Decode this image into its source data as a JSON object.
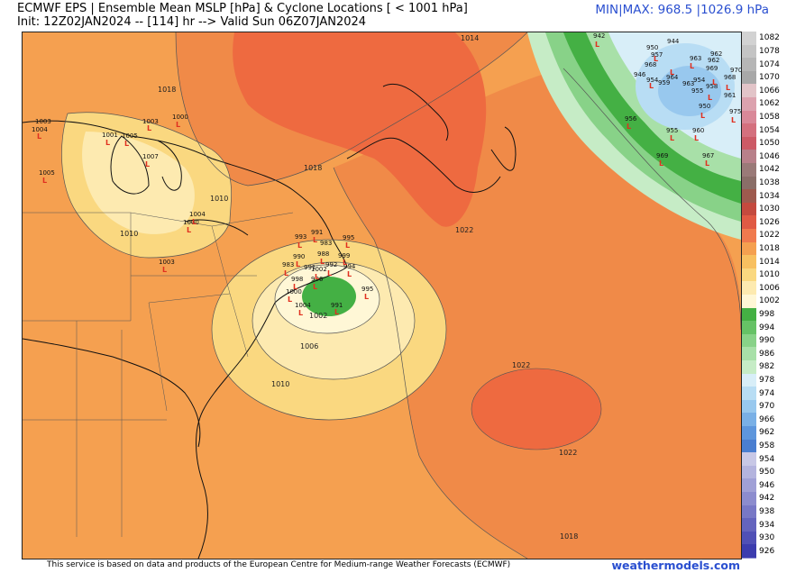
{
  "header": {
    "title_line1": "ECMWF EPS | Ensemble Mean MSLP [hPa] & Cyclone Locations [ < 1001 hPa]",
    "title_line2": "Init: 12Z02JAN2024 -- [114] hr --> Valid Sun 06Z07JAN2024",
    "minmax": "MIN|MAX: 968.5 |1026.9 hPa"
  },
  "footer": {
    "attribution": "This service is based on data and products of the European Centre for Medium-range Weather Forecasts (ECMWF)",
    "brand": "weathermodels.com"
  },
  "colorbar": {
    "levels": [
      "1082",
      "1078",
      "1074",
      "1070",
      "1066",
      "1062",
      "1058",
      "1054",
      "1050",
      "1046",
      "1042",
      "1038",
      "1034",
      "1030",
      "1026",
      "1022",
      "1018",
      "1014",
      "1010",
      "1006",
      "1002",
      "998",
      "994",
      "990",
      "986",
      "982",
      "978",
      "974",
      "970",
      "966",
      "962",
      "958",
      "954",
      "950",
      "946",
      "942",
      "938",
      "934",
      "930",
      "926"
    ],
    "colors": [
      "#d2d2d2",
      "#c4c4c4",
      "#b6b6b6",
      "#a8a8a8",
      "#e2c4c8",
      "#dca2ae",
      "#d98898",
      "#d4707e",
      "#cc5a66",
      "#b8808a",
      "#9a7a78",
      "#8a6e68",
      "#9e5a4e",
      "#c44a3e",
      "#e05a44",
      "#f07a4e",
      "#f5a050",
      "#f8c060",
      "#fad880",
      "#fdeab0",
      "#fff7d6",
      "#44b044",
      "#66c266",
      "#88d288",
      "#a8e0a8",
      "#c6ecc6",
      "#d8eef8",
      "#b8ddf4",
      "#98c8ee",
      "#7ab0e6",
      "#5e96dc",
      "#4a7ed0",
      "#c8c8e6",
      "#b4b4de",
      "#a0a0d6",
      "#8c8cce",
      "#7878c6",
      "#6464be",
      "#5050b6",
      "#3c3cae"
    ]
  },
  "map": {
    "contour_labels": [
      {
        "text": "1014"
      },
      {
        "text": "1018"
      },
      {
        "text": "1018"
      },
      {
        "text": "1010"
      },
      {
        "text": "1010"
      },
      {
        "text": "1022"
      },
      {
        "text": "1022"
      },
      {
        "text": "1022"
      },
      {
        "text": "1006"
      },
      {
        "text": "1002"
      },
      {
        "text": "1010"
      },
      {
        "text": "1018"
      }
    ],
    "low_labels": [
      "942",
      "944",
      "950",
      "957",
      "968",
      "946",
      "954",
      "962",
      "963",
      "962",
      "969",
      "970",
      "968",
      "961",
      "954",
      "964",
      "963",
      "958",
      "955",
      "950",
      "959",
      "975",
      "956",
      "955",
      "960",
      "969",
      "967",
      "1003",
      "1004",
      "1001",
      "1005",
      "1003",
      "1000",
      "1007",
      "1005",
      "1004",
      "1003",
      "1000",
      "991",
      "983",
      "993",
      "995",
      "988",
      "990",
      "991",
      "983",
      "992",
      "994",
      "999",
      "998",
      "996",
      "995",
      "1000",
      "991",
      "1004",
      "1002"
    ]
  }
}
